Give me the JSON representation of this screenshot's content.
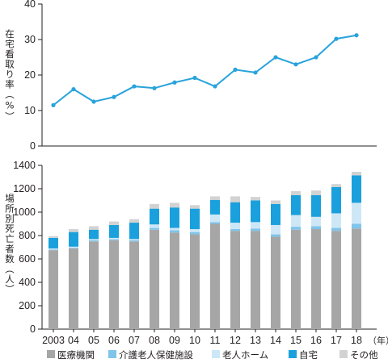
{
  "chart_data": [
    {
      "type": "line",
      "ylabel": "在宅看取り率（%）",
      "ylim": [
        0,
        40
      ],
      "yticks": [
        0,
        10,
        20,
        30,
        40
      ],
      "grid": false,
      "color": "#29a3dc",
      "x": [
        "2003",
        "04",
        "05",
        "06",
        "07",
        "08",
        "09",
        "10",
        "11",
        "12",
        "13",
        "14",
        "15",
        "16",
        "17",
        "18"
      ],
      "values": [
        11.5,
        16.0,
        12.5,
        13.8,
        16.8,
        16.3,
        17.9,
        19.2,
        16.8,
        21.5,
        20.7,
        25.0,
        23.0,
        25.0,
        30.2,
        31.2
      ]
    },
    {
      "type": "bar",
      "stacked": true,
      "ylabel": "場所別死亡者数（人）",
      "ylim": [
        0,
        1400
      ],
      "yticks": [
        0,
        200,
        400,
        600,
        800,
        1000,
        1200,
        1400
      ],
      "grid": false,
      "categories": [
        "2003",
        "04",
        "05",
        "06",
        "07",
        "08",
        "09",
        "10",
        "11",
        "12",
        "13",
        "14",
        "15",
        "16",
        "17",
        "18"
      ],
      "x_unit": "（年）",
      "legend_position": "bottom",
      "series": [
        {
          "name": "医療機関",
          "color": "#a6a6a6",
          "values": [
            675,
            690,
            750,
            760,
            750,
            850,
            825,
            810,
            900,
            840,
            840,
            790,
            850,
            855,
            840,
            860
          ]
        },
        {
          "name": "介護老人保健施設",
          "color": "#7fc4ea",
          "values": [
            5,
            5,
            10,
            10,
            10,
            15,
            20,
            20,
            15,
            15,
            20,
            20,
            25,
            25,
            25,
            40
          ]
        },
        {
          "name": "老人ホーム",
          "color": "#cde7f7",
          "values": [
            10,
            10,
            10,
            10,
            10,
            30,
            20,
            25,
            65,
            55,
            55,
            80,
            100,
            80,
            125,
            180
          ]
        },
        {
          "name": "自宅",
          "color": "#1aa0dc",
          "values": [
            90,
            125,
            80,
            110,
            140,
            135,
            175,
            175,
            125,
            175,
            185,
            180,
            170,
            185,
            225,
            235
          ]
        },
        {
          "name": "その他",
          "color": "#d2d2d2",
          "values": [
            15,
            25,
            30,
            30,
            30,
            40,
            40,
            30,
            30,
            50,
            30,
            30,
            35,
            40,
            25,
            30
          ]
        }
      ]
    }
  ]
}
